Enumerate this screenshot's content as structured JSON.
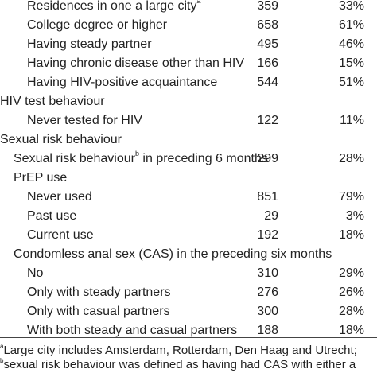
{
  "rows": [
    {
      "label": "Residences in one a large city",
      "sup": "a",
      "n": "359",
      "pct": "33%"
    },
    {
      "label": "College degree or higher",
      "n": "658",
      "pct": "61%"
    },
    {
      "label": "Having steady partner",
      "n": "495",
      "pct": "46%"
    },
    {
      "label": "Having chronic disease other than HIV",
      "n": "166",
      "pct": "15%"
    },
    {
      "label": "Having HIV-positive acquaintance",
      "n": "544",
      "pct": "51%"
    },
    {
      "label": "HIV test behaviour"
    },
    {
      "label": "Never tested for HIV",
      "n": "122",
      "pct": "11%"
    },
    {
      "label": "Sexual risk behaviour"
    },
    {
      "label": "Sexual risk behaviour",
      "sup": "b",
      "label_after": " in preceding 6 months",
      "n": "299",
      "pct": "28%"
    },
    {
      "label": "PrEP use"
    },
    {
      "label": "Never used",
      "n": "851",
      "pct": "79%"
    },
    {
      "label": "Past use",
      "n": "29",
      "pct": "3%"
    },
    {
      "label": "Current use",
      "n": "192",
      "pct": "18%"
    },
    {
      "label": "Condomless anal sex (CAS) in the preceding six months"
    },
    {
      "label": "No",
      "n": "310",
      "pct": "29%"
    },
    {
      "label": "Only with steady partners",
      "n": "276",
      "pct": "26%"
    },
    {
      "label": "Only with casual partners",
      "n": "300",
      "pct": "28%"
    },
    {
      "label": "With both steady and casual partners",
      "n": "188",
      "pct": "18%"
    }
  ],
  "footnotes": [
    {
      "mark": "a",
      "text": "Large city includes Amsterdam, Rotterdam, Den Haag and Utrecht;"
    },
    {
      "mark": "b",
      "text": "sexual risk behaviour was defined as having had CAS with either a"
    }
  ]
}
